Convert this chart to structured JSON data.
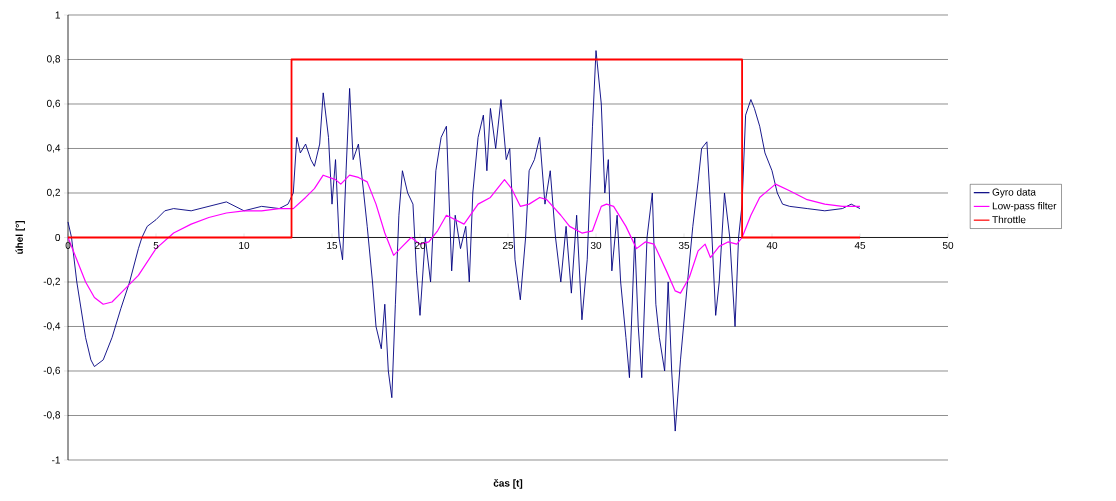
{
  "chart_data": {
    "type": "line",
    "xlabel": "čas [t]",
    "ylabel": "úhel [°]",
    "xlim": [
      0,
      50
    ],
    "ylim": [
      -1,
      1
    ],
    "xticks": [
      0,
      5,
      10,
      15,
      20,
      25,
      30,
      35,
      40,
      45,
      50
    ],
    "yticks": [
      -1,
      {
        "value": -0.8,
        "label": "-0,8"
      },
      {
        "value": -0.6,
        "label": "-0,6"
      },
      {
        "value": -0.4,
        "label": "-0,4"
      },
      {
        "value": -0.2,
        "label": "-0,2"
      },
      0,
      {
        "value": 0.2,
        "label": "0,2"
      },
      {
        "value": 0.4,
        "label": "0,4"
      },
      {
        "value": 0.6,
        "label": "0,6"
      },
      {
        "value": 0.8,
        "label": "0,8"
      },
      1
    ],
    "grid": "y",
    "legend": "right",
    "marker": "none",
    "line_style": "solid",
    "series": [
      {
        "name": "Gyro data",
        "color": "#000080",
        "x": [
          0,
          0.2,
          0.5,
          1,
          1.3,
          1.5,
          2,
          2.5,
          3,
          3.5,
          4,
          4.2,
          4.5,
          5,
          5.5,
          6,
          7,
          8,
          9,
          10,
          11,
          12,
          12.5,
          12.8,
          13,
          13.2,
          13.5,
          13.8,
          14,
          14.3,
          14.5,
          14.8,
          15,
          15.2,
          15.4,
          15.6,
          15.8,
          16,
          16.2,
          16.5,
          16.8,
          17,
          17.3,
          17.5,
          17.8,
          18,
          18.2,
          18.4,
          18.6,
          18.8,
          19,
          19.3,
          19.6,
          19.8,
          20,
          20.3,
          20.6,
          20.9,
          21.2,
          21.5,
          21.8,
          22,
          22.3,
          22.6,
          22.8,
          23,
          23.3,
          23.6,
          23.8,
          24,
          24.3,
          24.6,
          24.9,
          25.1,
          25.4,
          25.7,
          26,
          26.2,
          26.5,
          26.8,
          27.1,
          27.4,
          27.7,
          28,
          28.3,
          28.6,
          28.9,
          29.2,
          29.5,
          29.8,
          30,
          30.3,
          30.5,
          30.7,
          30.9,
          31.2,
          31.4,
          31.7,
          31.9,
          32.2,
          32.4,
          32.6,
          32.9,
          33.2,
          33.4,
          33.6,
          33.9,
          34.1,
          34.3,
          34.5,
          34.8,
          35.2,
          35.5,
          35.8,
          36,
          36.3,
          36.5,
          36.8,
          37,
          37.3,
          37.6,
          37.9,
          38.1,
          38.3,
          38.5,
          38.8,
          39,
          39.3,
          39.6,
          40,
          40.3,
          40.6,
          41,
          42,
          43,
          44,
          44.5,
          45
        ],
        "values": [
          0.07,
          0,
          -0.2,
          -0.45,
          -0.55,
          -0.58,
          -0.55,
          -0.45,
          -0.32,
          -0.2,
          -0.05,
          0,
          0.05,
          0.08,
          0.12,
          0.13,
          0.12,
          0.14,
          0.16,
          0.12,
          0.14,
          0.13,
          0.15,
          0.2,
          0.45,
          0.38,
          0.42,
          0.35,
          0.32,
          0.42,
          0.65,
          0.45,
          0.15,
          0.35,
          0,
          -0.1,
          0.3,
          0.67,
          0.35,
          0.42,
          0.2,
          0.05,
          -0.2,
          -0.4,
          -0.5,
          -0.3,
          -0.6,
          -0.72,
          -0.3,
          0.1,
          0.3,
          0.2,
          0.15,
          -0.15,
          -0.35,
          0,
          -0.2,
          0.3,
          0.45,
          0.5,
          -0.15,
          0.1,
          -0.05,
          0.05,
          -0.2,
          0.2,
          0.45,
          0.55,
          0.3,
          0.58,
          0.4,
          0.62,
          0.35,
          0.4,
          -0.1,
          -0.28,
          0,
          0.3,
          0.35,
          0.45,
          0.15,
          0.3,
          0,
          -0.2,
          0.05,
          -0.25,
          0.1,
          -0.37,
          -0.1,
          0.5,
          0.84,
          0.6,
          0.2,
          0.35,
          -0.15,
          0.1,
          -0.2,
          -0.45,
          -0.63,
          0,
          -0.4,
          -0.63,
          0,
          0.2,
          -0.3,
          -0.45,
          -0.6,
          -0.2,
          -0.6,
          -0.87,
          -0.55,
          -0.2,
          0.05,
          0.25,
          0.4,
          0.43,
          0.15,
          -0.35,
          -0.2,
          0.2,
          0,
          -0.4,
          0,
          0.15,
          0.55,
          0.62,
          0.58,
          0.5,
          0.38,
          0.3,
          0.2,
          0.15,
          0.14,
          0.13,
          0.12,
          0.13,
          0.15,
          0.13
        ]
      },
      {
        "name": "Low-pass filter",
        "color": "#ff00ff",
        "x": [
          0,
          0.5,
          1,
          1.5,
          2,
          2.5,
          3,
          4,
          5,
          6,
          7,
          8,
          9,
          10,
          11,
          12,
          12.8,
          13.5,
          14,
          14.5,
          15.2,
          15.5,
          16,
          16.5,
          17,
          17.5,
          18,
          18.5,
          19,
          19.5,
          20,
          20.5,
          21,
          21.5,
          22,
          22.5,
          23.3,
          24,
          24.8,
          25.2,
          25.7,
          26.2,
          26.8,
          27.2,
          28,
          28.5,
          29.2,
          29.8,
          30.3,
          30.6,
          31,
          31.7,
          32.3,
          32.8,
          33.3,
          34,
          34.5,
          34.8,
          35.3,
          35.8,
          36.2,
          36.5,
          37,
          37.5,
          38,
          38.3,
          38.8,
          39.3,
          40.2,
          41,
          42,
          43,
          44,
          45
        ],
        "values": [
          0,
          -0.1,
          -0.2,
          -0.27,
          -0.3,
          -0.29,
          -0.25,
          -0.17,
          -0.05,
          0.02,
          0.06,
          0.09,
          0.11,
          0.12,
          0.12,
          0.13,
          0.13,
          0.18,
          0.22,
          0.28,
          0.26,
          0.24,
          0.28,
          0.27,
          0.25,
          0.15,
          0.02,
          -0.08,
          -0.04,
          0,
          -0.03,
          -0.02,
          0.03,
          0.1,
          0.08,
          0.06,
          0.15,
          0.18,
          0.26,
          0.22,
          0.14,
          0.15,
          0.18,
          0.17,
          0.1,
          0.05,
          0.02,
          0.03,
          0.14,
          0.15,
          0.14,
          0.05,
          -0.05,
          -0.02,
          -0.03,
          -0.15,
          -0.24,
          -0.25,
          -0.18,
          -0.06,
          -0.03,
          -0.09,
          -0.04,
          -0.02,
          -0.03,
          0,
          0.1,
          0.18,
          0.24,
          0.21,
          0.17,
          0.15,
          0.14,
          0.14
        ]
      },
      {
        "name": "Throttle",
        "color": "#ff0000",
        "x": [
          0,
          12.7,
          12.7,
          38.3,
          38.3,
          45
        ],
        "values": [
          0,
          0,
          0.8,
          0.8,
          0,
          0
        ]
      }
    ]
  }
}
